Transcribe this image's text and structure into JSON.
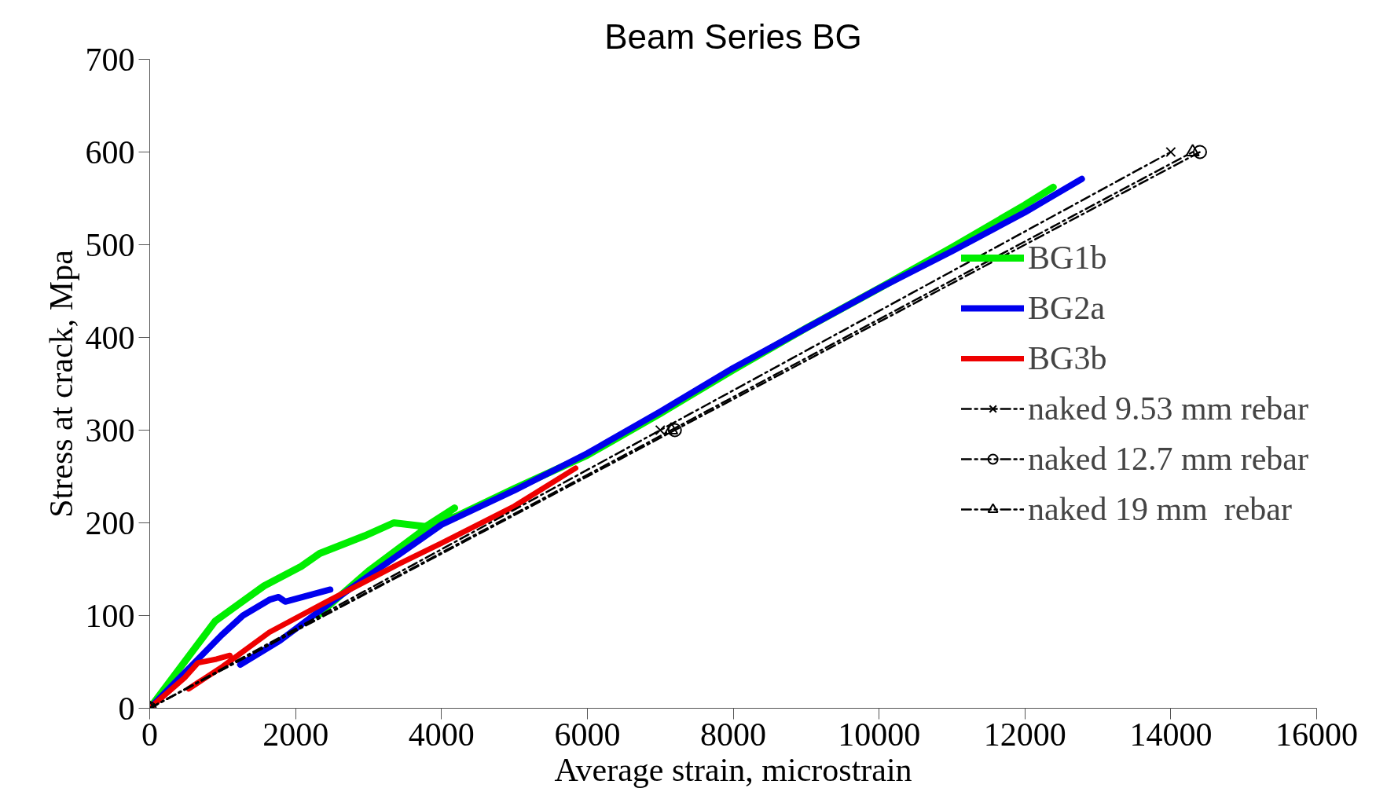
{
  "chart_data": {
    "type": "line",
    "title": "Beam Series BG",
    "xlabel": "Average strain, microstrain",
    "ylabel": "Stress at crack, Mpa",
    "xlim": [
      0,
      16000
    ],
    "ylim": [
      0,
      700
    ],
    "xticks": [
      0,
      2000,
      4000,
      6000,
      8000,
      10000,
      12000,
      14000,
      16000
    ],
    "yticks": [
      0,
      100,
      200,
      300,
      400,
      500,
      600,
      700
    ],
    "grid": false,
    "legend": "right",
    "line_style": "solid",
    "marker": "none",
    "series": [
      {
        "name": "BG1b",
        "color": "#00ee00",
        "x": [
          0,
          897,
          1568,
          2076,
          2330,
          2947,
          3346,
          3782,
          4181,
          null,
          2300,
          3000,
          3800,
          4200,
          5000,
          6000,
          7000,
          8000,
          9000,
          10000,
          11000,
          12000,
          12389
        ],
        "values": [
          0,
          94,
          132,
          153,
          167,
          186,
          200,
          196,
          216,
          null,
          100,
          148,
          195,
          207,
          237,
          273,
          318,
          365,
          410,
          453,
          497,
          543,
          562
        ]
      },
      {
        "name": "BG2a",
        "color": "#0000ee",
        "x": [
          0,
          987,
          1278,
          1641,
          1768,
          1858,
          2475,
          null,
          1241,
          1786,
          2500,
          3383,
          4000,
          5000,
          6000,
          7000,
          8000,
          9000,
          10000,
          11000,
          12000,
          12780
        ],
        "values": [
          0,
          79,
          100,
          117,
          120,
          115,
          128,
          null,
          47,
          73,
          115,
          164,
          198,
          235,
          275,
          320,
          367,
          410,
          453,
          493,
          535,
          571
        ]
      },
      {
        "name": "BG3b",
        "color": "#ee0000",
        "x": [
          0,
          479,
          661,
          915,
          1100,
          null,
          534,
          1000,
          1641,
          2500,
          3400,
          4000,
          5000,
          5839
        ],
        "values": [
          0,
          33,
          49,
          53,
          57,
          null,
          21,
          45,
          82,
          118,
          155,
          178,
          218,
          259
        ]
      },
      {
        "name": "naked 9.53 mm rebar",
        "color": "#000000",
        "line_style": "dashed",
        "marker": "cross",
        "x": [
          0,
          7000,
          14000
        ],
        "values": [
          0,
          300,
          600
        ]
      },
      {
        "name": "naked 12.7 mm rebar",
        "color": "#000000",
        "line_style": "dashed",
        "marker": "circle",
        "x": [
          0,
          7200,
          14400
        ],
        "values": [
          0,
          300,
          600
        ]
      },
      {
        "name": "naked 19 mm  rebar",
        "color": "#000000",
        "line_style": "dashed",
        "marker": "triangle",
        "x": [
          0,
          7150,
          14300
        ],
        "values": [
          0,
          300,
          600
        ]
      }
    ]
  }
}
